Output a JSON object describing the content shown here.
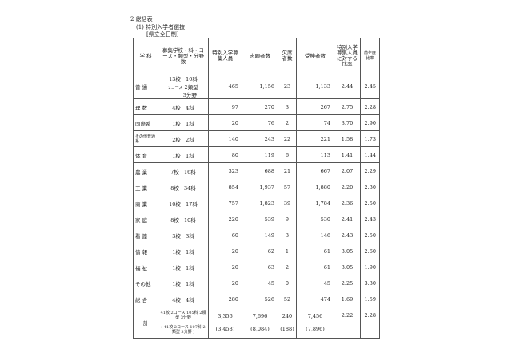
{
  "heading": "2 総括表",
  "subheading": "(1) 特別入学者選抜",
  "scope": "[県立全日制]",
  "columns": [
    "学 科",
    "募集学校・科・コース・類型・分野数",
    "特別入学募集人員",
    "志願者数",
    "欠席者数",
    "受検者数",
    "特別入学募集人員に対する比率",
    "前年度比率"
  ],
  "rows": [
    {
      "dept": "普 通",
      "schools": "13校",
      "courses": "10科",
      "extra1": "2コース",
      "extra2": "2類型",
      "extra3": "3分野",
      "quota": "465",
      "applicants": "1,156",
      "absent": "23",
      "examinees": "1,133",
      "ratio": "2.44",
      "prev": "2.45"
    },
    {
      "dept": "理 数",
      "schools": "4校",
      "courses": "4科",
      "quota": "97",
      "applicants": "270",
      "absent": "3",
      "examinees": "267",
      "ratio": "2.75",
      "prev": "2.28"
    },
    {
      "dept": "国際系",
      "schools": "1校",
      "courses": "1科",
      "quota": "20",
      "applicants": "76",
      "absent": "2",
      "examinees": "74",
      "ratio": "3.70",
      "prev": "2.90"
    },
    {
      "dept": "その他普通系",
      "schools": "2校",
      "courses": "2科",
      "quota": "140",
      "applicants": "243",
      "absent": "22",
      "examinees": "221",
      "ratio": "1.58",
      "prev": "1.73"
    },
    {
      "dept": "体 育",
      "schools": "1校",
      "courses": "1科",
      "quota": "80",
      "applicants": "119",
      "absent": "6",
      "examinees": "113",
      "ratio": "1.41",
      "prev": "1.44"
    },
    {
      "dept": "農 業",
      "schools": "7校",
      "courses": "16科",
      "quota": "323",
      "applicants": "688",
      "absent": "21",
      "examinees": "667",
      "ratio": "2.07",
      "prev": "2.29"
    },
    {
      "dept": "工 業",
      "schools": "8校",
      "courses": "34科",
      "quota": "854",
      "applicants": "1,937",
      "absent": "57",
      "examinees": "1,880",
      "ratio": "2.20",
      "prev": "2.30"
    },
    {
      "dept": "商 業",
      "schools": "10校",
      "courses": "17科",
      "quota": "757",
      "applicants": "1,823",
      "absent": "39",
      "examinees": "1,784",
      "ratio": "2.36",
      "prev": "2.50"
    },
    {
      "dept": "家 庭",
      "schools": "8校",
      "courses": "10科",
      "quota": "220",
      "applicants": "539",
      "absent": "9",
      "examinees": "530",
      "ratio": "2.41",
      "prev": "2.43"
    },
    {
      "dept": "看 護",
      "schools": "3校",
      "courses": "3科",
      "quota": "60",
      "applicants": "149",
      "absent": "3",
      "examinees": "146",
      "ratio": "2.43",
      "prev": "2.50"
    },
    {
      "dept": "情 報",
      "schools": "1校",
      "courses": "1科",
      "quota": "20",
      "applicants": "62",
      "absent": "1",
      "examinees": "61",
      "ratio": "3.05",
      "prev": "2.60"
    },
    {
      "dept": "福 祉",
      "schools": "1校",
      "courses": "1科",
      "quota": "20",
      "applicants": "63",
      "absent": "2",
      "examinees": "61",
      "ratio": "3.05",
      "prev": "1.90"
    },
    {
      "dept": "その他",
      "schools": "1校",
      "courses": "1科",
      "quota": "20",
      "applicants": "45",
      "absent": "0",
      "examinees": "45",
      "ratio": "2.25",
      "prev": "3.30"
    },
    {
      "dept": "総 合",
      "schools": "4校",
      "courses": "4科",
      "quota": "280",
      "applicants": "526",
      "absent": "52",
      "examinees": "474",
      "ratio": "1.69",
      "prev": "1.59"
    }
  ],
  "total": {
    "dept": "計",
    "schools": "41校 2コース",
    "courses": "105科 2類型 3分野",
    "quota": "3,356",
    "applicants": "7,696",
    "absent": "240",
    "examinees": "7,456",
    "ratio": "2.22",
    "prev": "2.28",
    "prev_schools": "( 41校 2コース",
    "prev_courses": "107科 2類型 3分野 )",
    "prev_quota": "(3,458)",
    "prev_applicants": "(8,084)",
    "prev_absent": "(188)",
    "prev_examinees": "(7,896)"
  }
}
